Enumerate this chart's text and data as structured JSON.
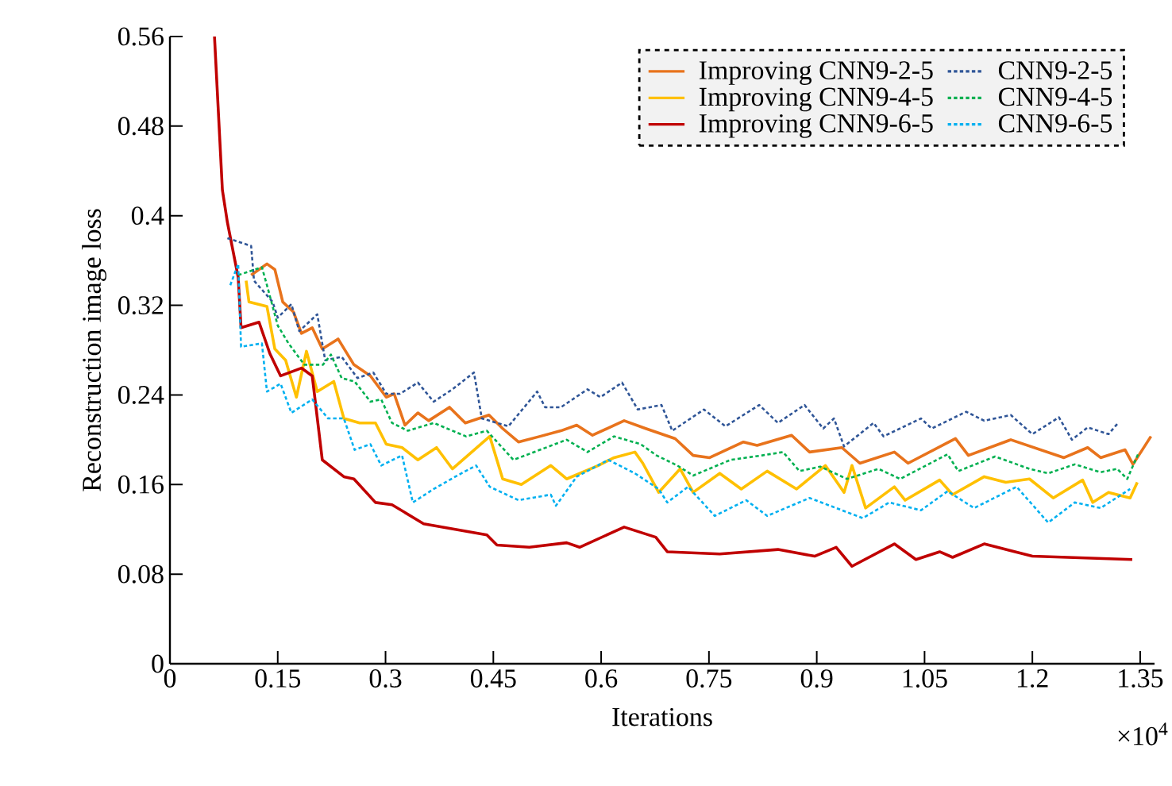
{
  "chart_data": {
    "type": "line",
    "xlabel": "Iterations",
    "ylabel": "Reconstruction image loss",
    "annotations": [
      "×10$^{4}$"
    ],
    "xlim": [
      0,
      1.37
    ],
    "xticks": [
      0,
      0.15,
      0.3,
      0.45,
      0.6,
      0.75,
      0.9,
      1.05,
      1.2,
      1.35
    ],
    "ylim": [
      0,
      0.56
    ],
    "yticks": [
      0,
      0.08,
      0.16,
      0.24,
      0.32,
      0.4,
      0.48,
      0.56
    ],
    "grid": false,
    "legend": "top right",
    "marker": "none",
    "series": [
      {
        "name": "Improving CNN9-2-5",
        "color": "#e8731c",
        "line_style": "solid",
        "x": [
          0.113,
          0.135,
          0.146,
          0.157,
          0.172,
          0.183,
          0.198,
          0.212,
          0.234,
          0.256,
          0.279,
          0.301,
          0.312,
          0.327,
          0.345,
          0.36,
          0.389,
          0.411,
          0.444,
          0.463,
          0.485,
          0.515,
          0.544,
          0.566,
          0.588,
          0.632,
          0.662,
          0.703,
          0.728,
          0.751,
          0.798,
          0.817,
          0.865,
          0.89,
          0.935,
          0.96,
          1.008,
          1.027,
          1.093,
          1.111,
          1.17,
          1.244,
          1.277,
          1.295,
          1.329,
          1.34,
          1.365
        ],
        "values": [
          0.347,
          0.357,
          0.352,
          0.323,
          0.314,
          0.295,
          0.3,
          0.281,
          0.29,
          0.267,
          0.257,
          0.238,
          0.241,
          0.213,
          0.224,
          0.217,
          0.229,
          0.215,
          0.222,
          0.21,
          0.198,
          0.203,
          0.208,
          0.213,
          0.204,
          0.217,
          0.21,
          0.201,
          0.186,
          0.184,
          0.198,
          0.195,
          0.204,
          0.189,
          0.193,
          0.179,
          0.189,
          0.179,
          0.201,
          0.186,
          0.2,
          0.184,
          0.193,
          0.184,
          0.191,
          0.178,
          0.203
        ]
      },
      {
        "name": "Improving CNN9-4-5",
        "color": "#ffc000",
        "line_style": "solid",
        "x": [
          0.106,
          0.11,
          0.135,
          0.146,
          0.161,
          0.176,
          0.19,
          0.205,
          0.228,
          0.242,
          0.264,
          0.286,
          0.301,
          0.323,
          0.345,
          0.371,
          0.393,
          0.445,
          0.463,
          0.489,
          0.53,
          0.552,
          0.596,
          0.618,
          0.647,
          0.658,
          0.68,
          0.71,
          0.728,
          0.765,
          0.795,
          0.831,
          0.872,
          0.912,
          0.938,
          0.949,
          0.968,
          1.008,
          1.023,
          1.071,
          1.089,
          1.133,
          1.163,
          1.196,
          1.229,
          1.27,
          1.284,
          1.306,
          1.336,
          1.346
        ],
        "values": [
          0.342,
          0.323,
          0.319,
          0.281,
          0.271,
          0.238,
          0.279,
          0.243,
          0.252,
          0.219,
          0.215,
          0.215,
          0.196,
          0.193,
          0.182,
          0.193,
          0.174,
          0.203,
          0.165,
          0.16,
          0.177,
          0.165,
          0.177,
          0.184,
          0.189,
          0.179,
          0.153,
          0.174,
          0.153,
          0.17,
          0.156,
          0.172,
          0.156,
          0.177,
          0.153,
          0.177,
          0.139,
          0.158,
          0.146,
          0.164,
          0.151,
          0.167,
          0.162,
          0.165,
          0.148,
          0.164,
          0.144,
          0.153,
          0.148,
          0.162
        ]
      },
      {
        "name": "Improving CNN9-6-5",
        "color": "#c00000",
        "line_style": "solid",
        "x": [
          0.062,
          0.073,
          0.08,
          0.095,
          0.099,
          0.124,
          0.139,
          0.154,
          0.183,
          0.198,
          0.212,
          0.242,
          0.256,
          0.286,
          0.309,
          0.353,
          0.397,
          0.441,
          0.455,
          0.5,
          0.552,
          0.57,
          0.632,
          0.676,
          0.692,
          0.765,
          0.846,
          0.897,
          0.927,
          0.949,
          1.008,
          1.038,
          1.071,
          1.089,
          1.133,
          1.2,
          1.339
        ],
        "values": [
          0.56,
          0.423,
          0.394,
          0.345,
          0.3,
          0.305,
          0.277,
          0.257,
          0.264,
          0.257,
          0.182,
          0.167,
          0.165,
          0.144,
          0.142,
          0.125,
          0.12,
          0.115,
          0.106,
          0.104,
          0.108,
          0.104,
          0.122,
          0.113,
          0.1,
          0.098,
          0.102,
          0.096,
          0.104,
          0.087,
          0.107,
          0.093,
          0.1,
          0.095,
          0.107,
          0.096,
          0.093
        ]
      },
      {
        "name": "CNN9-2-5",
        "color": "#2f5597",
        "line_style": "dotted",
        "x": [
          0.08,
          0.113,
          0.117,
          0.143,
          0.15,
          0.169,
          0.18,
          0.205,
          0.216,
          0.239,
          0.261,
          0.283,
          0.301,
          0.32,
          0.345,
          0.367,
          0.393,
          0.423,
          0.434,
          0.471,
          0.511,
          0.522,
          0.544,
          0.581,
          0.599,
          0.629,
          0.651,
          0.684,
          0.699,
          0.743,
          0.773,
          0.82,
          0.846,
          0.883,
          0.909,
          0.924,
          0.938,
          0.979,
          0.993,
          1.045,
          1.06,
          1.108,
          1.133,
          1.17,
          1.2,
          1.237,
          1.255,
          1.277,
          1.306,
          1.318
        ],
        "values": [
          0.38,
          0.373,
          0.342,
          0.323,
          0.309,
          0.321,
          0.297,
          0.312,
          0.271,
          0.274,
          0.255,
          0.26,
          0.241,
          0.241,
          0.251,
          0.234,
          0.245,
          0.26,
          0.219,
          0.212,
          0.243,
          0.229,
          0.229,
          0.245,
          0.238,
          0.251,
          0.227,
          0.231,
          0.208,
          0.227,
          0.212,
          0.231,
          0.215,
          0.231,
          0.21,
          0.219,
          0.194,
          0.215,
          0.203,
          0.219,
          0.21,
          0.225,
          0.217,
          0.222,
          0.205,
          0.22,
          0.2,
          0.211,
          0.205,
          0.214
        ]
      },
      {
        "name": "CNN9-4-5",
        "color": "#00b050",
        "line_style": "dotted",
        "x": [
          0.095,
          0.128,
          0.135,
          0.15,
          0.165,
          0.187,
          0.213,
          0.224,
          0.239,
          0.257,
          0.279,
          0.294,
          0.309,
          0.331,
          0.367,
          0.412,
          0.441,
          0.478,
          0.515,
          0.552,
          0.581,
          0.618,
          0.655,
          0.677,
          0.706,
          0.728,
          0.78,
          0.824,
          0.853,
          0.876,
          0.905,
          0.942,
          0.986,
          1.016,
          1.082,
          1.097,
          1.148,
          1.196,
          1.222,
          1.259,
          1.295,
          1.318,
          1.332,
          1.347
        ],
        "values": [
          0.347,
          0.354,
          0.338,
          0.302,
          0.286,
          0.267,
          0.267,
          0.276,
          0.255,
          0.252,
          0.234,
          0.236,
          0.215,
          0.208,
          0.215,
          0.203,
          0.208,
          0.182,
          0.191,
          0.2,
          0.189,
          0.203,
          0.196,
          0.186,
          0.177,
          0.168,
          0.182,
          0.186,
          0.189,
          0.172,
          0.176,
          0.165,
          0.174,
          0.165,
          0.187,
          0.172,
          0.185,
          0.174,
          0.17,
          0.178,
          0.171,
          0.174,
          0.165,
          0.187
        ]
      },
      {
        "name": "CNN9-6-5",
        "color": "#00b0f0",
        "line_style": "dotted",
        "x": [
          0.084,
          0.095,
          0.099,
          0.128,
          0.135,
          0.154,
          0.169,
          0.198,
          0.22,
          0.242,
          0.257,
          0.279,
          0.294,
          0.323,
          0.338,
          0.367,
          0.397,
          0.426,
          0.445,
          0.485,
          0.53,
          0.537,
          0.566,
          0.61,
          0.647,
          0.68,
          0.692,
          0.721,
          0.758,
          0.802,
          0.831,
          0.89,
          0.964,
          1.001,
          1.045,
          1.082,
          1.119,
          1.178,
          1.222,
          1.259,
          1.295,
          1.336
        ],
        "values": [
          0.338,
          0.357,
          0.283,
          0.286,
          0.243,
          0.25,
          0.224,
          0.236,
          0.219,
          0.219,
          0.191,
          0.196,
          0.177,
          0.186,
          0.144,
          0.156,
          0.167,
          0.177,
          0.158,
          0.146,
          0.151,
          0.141,
          0.167,
          0.182,
          0.17,
          0.156,
          0.144,
          0.158,
          0.132,
          0.146,
          0.132,
          0.148,
          0.13,
          0.144,
          0.137,
          0.154,
          0.139,
          0.158,
          0.126,
          0.144,
          0.139,
          0.156
        ]
      }
    ]
  }
}
